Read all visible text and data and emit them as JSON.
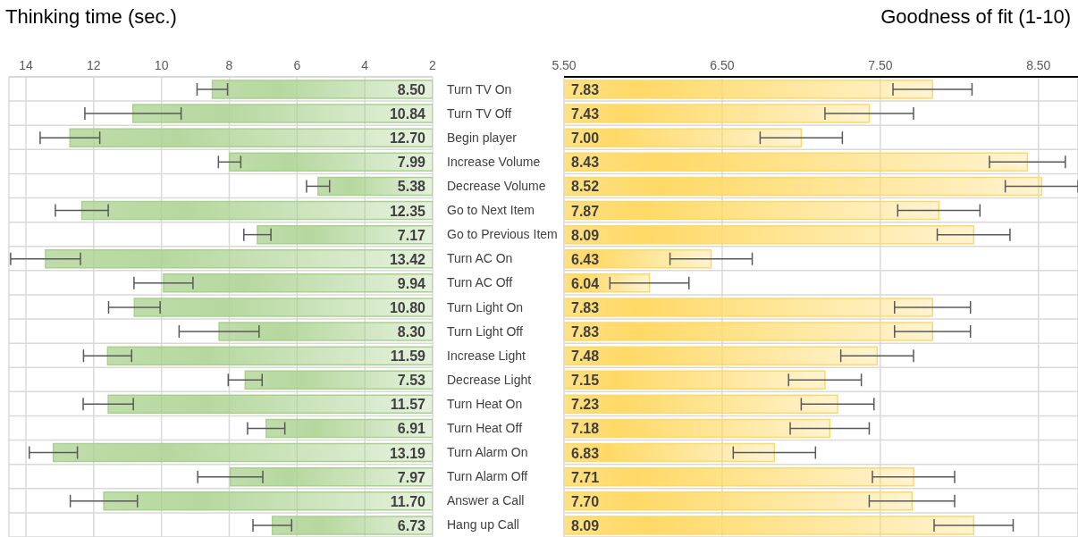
{
  "chart_data": [
    {
      "type": "bar",
      "orientation": "horizontal",
      "xlabel": "Thinking time (sec.)",
      "tick_labels": "x",
      "grid": true,
      "color": "#a9d18e",
      "categories": [
        null,
        null,
        null,
        null,
        null,
        null,
        null,
        null,
        null,
        null,
        null,
        null,
        null,
        null,
        null,
        null,
        null,
        null,
        null
      ],
      "values": [
        8.5,
        10.84,
        12.7,
        7.99,
        5.38,
        12.35,
        7.17,
        13.42,
        9.94,
        10.8,
        8.3,
        11.59,
        7.53,
        11.57,
        6.91,
        13.19,
        7.97,
        11.7,
        6.73
      ],
      "value_labels": [
        "8.50",
        "10.84",
        "12.70",
        "7.99",
        "5.38",
        "12.35",
        "7.17",
        "13.42",
        "9.94",
        "10.80",
        "8.30",
        "11.59",
        "7.53",
        "11.57",
        "6.91",
        "13.19",
        "7.97",
        "11.70",
        "6.73"
      ],
      "errors": [
        0.45,
        1.42,
        0.88,
        0.33,
        0.34,
        0.78,
        0.4,
        1.03,
        0.87,
        0.76,
        1.18,
        0.71,
        0.5,
        0.74,
        0.55,
        0.71,
        0.96,
        0.99,
        0.57
      ],
      "xlim": [
        14.5,
        2
      ],
      "xticks": [
        14,
        12,
        10,
        8,
        6,
        4,
        2
      ]
    },
    {
      "type": "bar",
      "orientation": "horizontal",
      "xlabel": "Goodness of fit (1-10)",
      "grid": true,
      "color": "#ffd966",
      "categories": [
        "Turn TV On",
        "Turn TV Off",
        "Begin player",
        "Increase Volume",
        "Decrease Volume",
        "Go to Next Item",
        "Go to Previous Item",
        "Turn AC On",
        "Turn AC Off",
        "Turn Light On",
        "Turn Light Off",
        "Increase Light",
        "Decrease Light",
        "Turn Heat On",
        "Turn Heat Off",
        "Turn Alarm On",
        "Turn Alarm Off",
        "Answer a Call",
        "Hang up Call"
      ],
      "values": [
        7.83,
        7.43,
        7.0,
        8.43,
        8.52,
        7.87,
        8.09,
        6.43,
        6.04,
        7.83,
        7.83,
        7.48,
        7.15,
        7.23,
        7.18,
        6.83,
        7.71,
        7.7,
        8.09
      ],
      "value_labels": [
        "7.83",
        "7.43",
        "7.00",
        "8.43",
        "8.52",
        "7.87",
        "8.09",
        "6.43",
        "6.04",
        "7.83",
        "7.83",
        "7.48",
        "7.15",
        "7.23",
        "7.18",
        "6.83",
        "7.71",
        "7.70",
        "8.09"
      ],
      "errors": [
        0.25,
        0.28,
        0.26,
        0.24,
        0.23,
        0.26,
        0.23,
        0.26,
        0.25,
        0.24,
        0.24,
        0.23,
        0.23,
        0.23,
        0.25,
        0.26,
        0.26,
        0.27,
        0.25
      ],
      "xlim": [
        5.5,
        8.75
      ],
      "xticks": [
        {
          "value": 5.5,
          "label": "5.50"
        },
        {
          "value": 6.5,
          "label": "6.50"
        },
        {
          "value": 7.5,
          "label": "7.50"
        },
        {
          "value": 8.5,
          "label": "8.50"
        }
      ]
    }
  ]
}
